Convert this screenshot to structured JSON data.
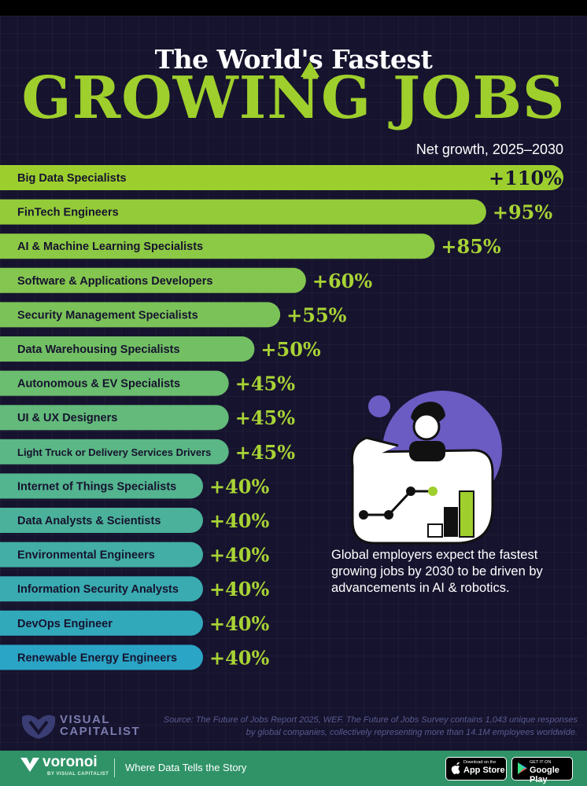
{
  "title": {
    "line1": "The World's Fastest",
    "line2": "GROWING JOBS"
  },
  "subtitle": "Net growth, 2025–2030",
  "chart_data": {
    "type": "bar",
    "orientation": "horizontal",
    "categories": [
      "Big Data Specialists",
      "FinTech Engineers",
      "AI & Machine Learning Specialists",
      "Software & Applications Developers",
      "Security Management Specialists",
      "Data Warehousing Specialists",
      "Autonomous & EV Specialists",
      "UI & UX Designers",
      "Light Truck or Delivery Services Drivers",
      "Internet of Things Specialists",
      "Data Analysts & Scientists",
      "Environmental Engineers",
      "Information Security Analysts",
      "DevOps Engineer",
      "Renewable Energy Engineers"
    ],
    "values": [
      110,
      95,
      85,
      60,
      55,
      50,
      45,
      45,
      45,
      40,
      40,
      40,
      40,
      40,
      40
    ],
    "value_labels": [
      "+110%",
      "+95%",
      "+85%",
      "+60%",
      "+55%",
      "+50%",
      "+45%",
      "+45%",
      "+45%",
      "+40%",
      "+40%",
      "+40%",
      "+40%",
      "+40%",
      "+40%"
    ],
    "colors": {
      "top": "#9ccf2e",
      "bottom": "#2aa5c6",
      "value_text": "#a8d335",
      "label_text": "#16132e"
    }
  },
  "illustration": {
    "caption": "Global employers expect the fastest growing jobs by 2030 to be driven by advancements in AI & robotics.",
    "icon": "person-with-chart-icon",
    "colors": {
      "blob": "#6a5cc2",
      "accent": "#9fcf2c"
    }
  },
  "source": "Source: The Future of Jobs Report 2025, WEF. The Future of Jobs Survey contains 1,043 unique responses by global companies, collectively representing more than 14.1M employees worldwide.",
  "brand": {
    "logo_line1": "VISUAL",
    "logo_line2": "CAPITALIST",
    "footer_name": "voronoi",
    "footer_sub": "BY VISUAL CAPITALIST",
    "tagline": "Where Data Tells the Story",
    "app_store_small": "Download on the",
    "app_store_big": "App Store",
    "google_play_small": "GET IT ON",
    "google_play_big": "Google Play",
    "footer_color": "#2f9367"
  }
}
